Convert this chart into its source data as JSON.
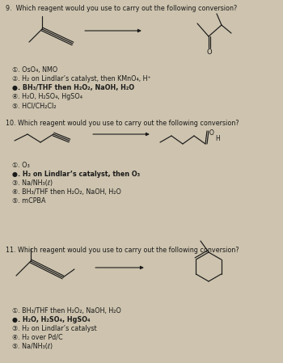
{
  "bg_color": "#cdc3ae",
  "text_color": "#1a1a1a",
  "q9_question": "9.  Which reagent would you use to carry out the following conversion?",
  "q9_options": [
    "①. OsO₄, NMO",
    "②. H₂ on Lindlar’s catalyst, then KMnO₄, H⁺",
    "●. BH₃/THF then H₂O₂, NaOH, H₂O",
    "④. H₂O, H₂SO₄, HgSO₄",
    "⑤. HCl/CH₂Cl₂"
  ],
  "q9_answer": 2,
  "q10_question": "10. Which reagent would you use to carry out the following conversion?",
  "q10_options": [
    "①. O₃",
    "●. H₂ on Lindlar’s catalyst, then O₃",
    "③. Na/NH₃(ℓ)",
    "④. BH₃/THF then H₂O₂, NaOH, H₂O",
    "⑤. mCPBA"
  ],
  "q10_answer": 1,
  "q11_question": "11. Which reagent would you use to carry out the following conversion?",
  "q11_options": [
    "①. BH₃/THF then H₂O₂, NaOH, H₂O",
    "●. H₂O, H₂SO₄, HgSO₄",
    "③. H₂ on Lindlar’s catalyst",
    "④. H₂ over Pd/C",
    "⑤. Na/NH₃(ℓ)"
  ],
  "q11_answer": 1
}
